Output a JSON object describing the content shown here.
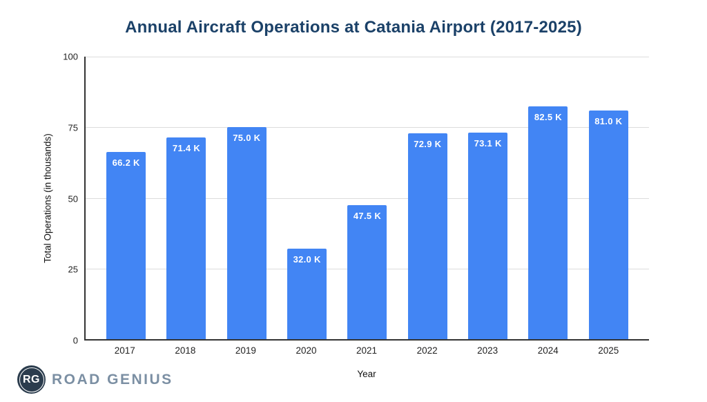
{
  "chart_data": {
    "type": "bar",
    "title": "Annual Aircraft Operations at Catania Airport (2017-2025)",
    "xlabel": "Year",
    "ylabel": "Total Operations (in thousands)",
    "categories": [
      "2017",
      "2018",
      "2019",
      "2020",
      "2021",
      "2022",
      "2023",
      "2024",
      "2025"
    ],
    "values": [
      66.2,
      71.4,
      75.0,
      32.0,
      47.5,
      72.9,
      73.1,
      82.5,
      81.0
    ],
    "bar_labels": [
      "66.2 K",
      "71.4 K",
      "75.0 K",
      "32.0 K",
      "47.5 K",
      "72.9 K",
      "73.1 K",
      "82.5 K",
      "81.0 K"
    ],
    "ylim": [
      0,
      100
    ],
    "yticks": [
      0,
      25,
      50,
      75,
      100
    ],
    "grid": true,
    "legend": "none",
    "colors": {
      "bar": "#4285F4",
      "bar_label": "#FFFFFF",
      "title": "#1B4168",
      "axis_line": "#333333",
      "gridline": "#DCDCDC",
      "tick_label": "#222222"
    }
  },
  "branding": {
    "logo_monogram": "RG",
    "logo_text": "ROAD GENIUS",
    "logo_badge_color": "#2B3C4D",
    "logo_text_color": "#7B8FA3"
  }
}
